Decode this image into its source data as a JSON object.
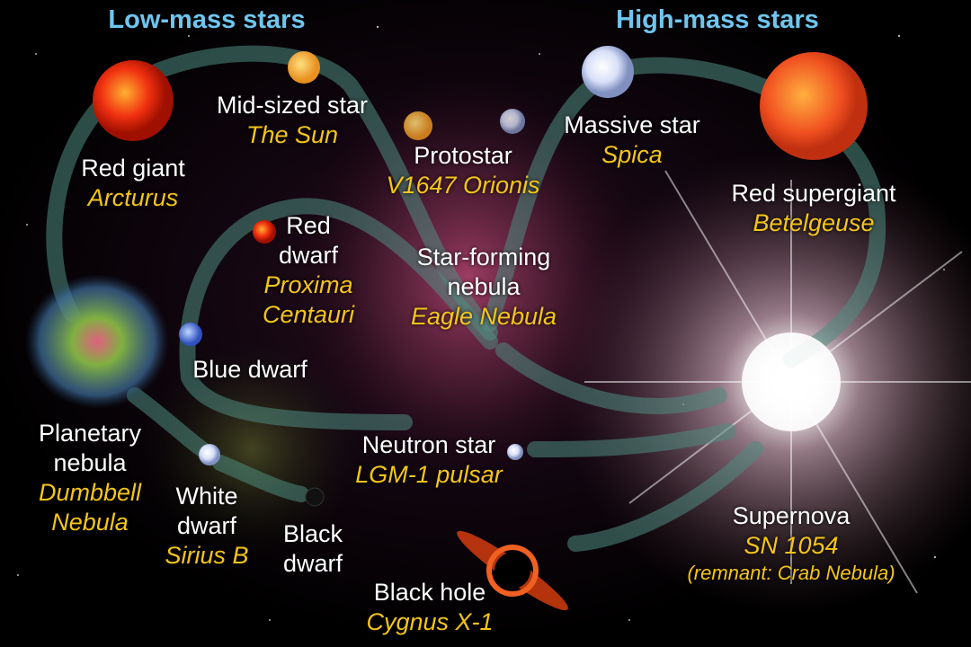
{
  "headings": {
    "low_mass": "Low-mass stars",
    "high_mass": "High-mass stars"
  },
  "stages": {
    "mid_sized_star": {
      "name": "Mid-sized star",
      "example": "The Sun"
    },
    "red_giant": {
      "name": "Red giant",
      "example": "Arcturus"
    },
    "protostar": {
      "name": "Protostar",
      "example": "V1647 Orionis"
    },
    "massive_star": {
      "name": "Massive star",
      "example": "Spica"
    },
    "red_supergiant": {
      "name": "Red supergiant",
      "example": "Betelgeuse"
    },
    "red_dwarf": {
      "name1": "Red",
      "name2": "dwarf",
      "example1": "Proxima",
      "example2": "Centauri"
    },
    "star_forming_nebula": {
      "name1": "Star-forming",
      "name2": "nebula",
      "example": "Eagle Nebula"
    },
    "blue_dwarf": {
      "name": "Blue dwarf"
    },
    "planetary_nebula": {
      "name1": "Planetary",
      "name2": "nebula",
      "example1": "Dumbbell",
      "example2": "Nebula"
    },
    "white_dwarf": {
      "name1": "White",
      "name2": "dwarf",
      "example": "Sirius B"
    },
    "black_dwarf": {
      "name1": "Black",
      "name2": "dwarf"
    },
    "neutron_star": {
      "name": "Neutron star",
      "example": "LGM-1 pulsar"
    },
    "supernova": {
      "name": "Supernova",
      "example": "SN 1054",
      "note": "(remnant: Crab Nebula)"
    },
    "black_hole": {
      "name": "Black hole",
      "example": "Cygnus X-1"
    }
  },
  "colors": {
    "heading": "#6ec6f0",
    "example": "#f5c518",
    "label": "#ffffff",
    "arrow": "#4f8c80"
  }
}
